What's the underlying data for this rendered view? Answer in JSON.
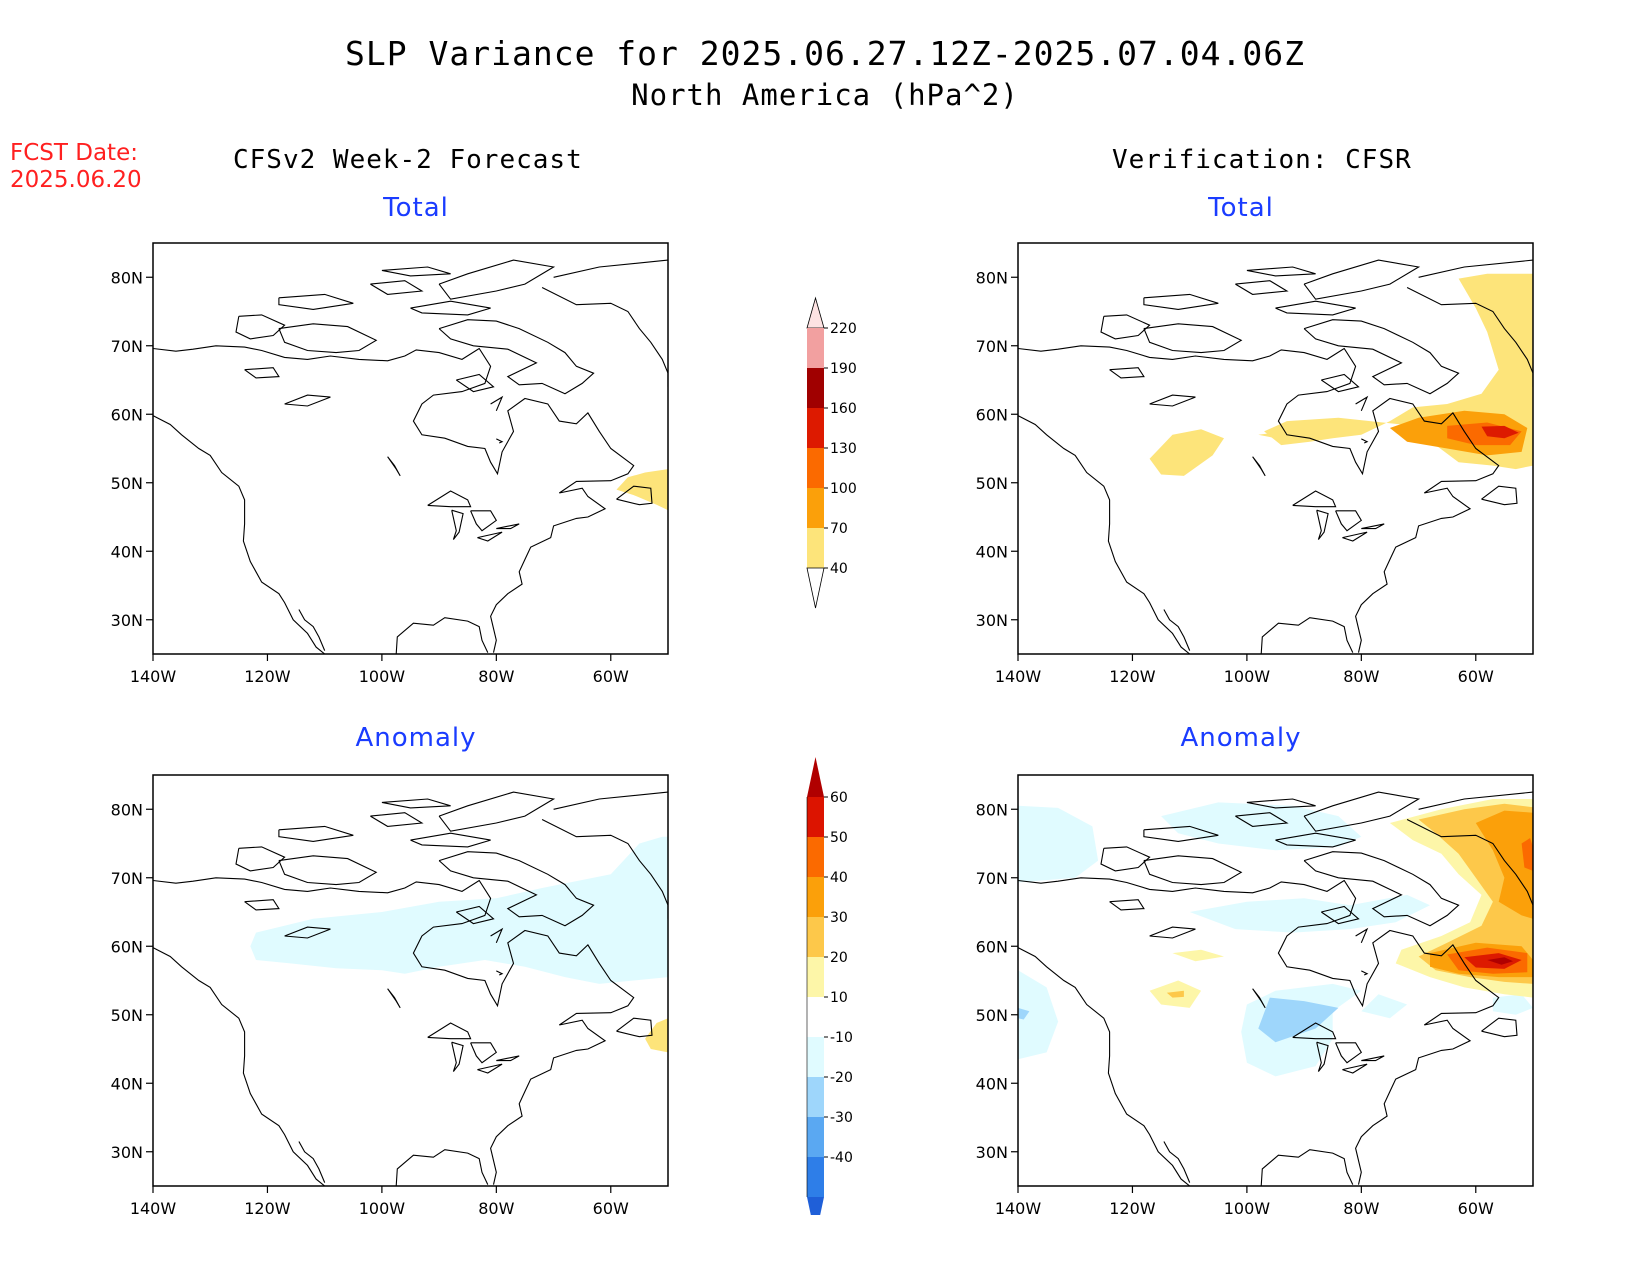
{
  "header": {
    "title_line1": "SLP Variance for 2025.06.27.12Z-2025.07.04.06Z",
    "title_line2": "North America (hPa^2)",
    "fcst_label": "FCST Date:",
    "fcst_date": "2025.06.20",
    "left_column": "CFSv2 Week-2 Forecast",
    "right_column": "Verification: CFSR"
  },
  "panels": {
    "fc_total_title": "Total",
    "vf_total_title": "Total",
    "fc_anom_title": "Anomaly",
    "vf_anom_title": "Anomaly"
  },
  "map": {
    "lon_range": [
      -140,
      -50
    ],
    "lat_range": [
      25,
      85
    ],
    "lat_ticks": [
      "80N",
      "70N",
      "60N",
      "50N",
      "40N",
      "30N"
    ],
    "lon_ticks": [
      "140W",
      "120W",
      "100W",
      "80W",
      "60W"
    ]
  },
  "legends": {
    "total": {
      "labels": [
        "220",
        "190",
        "160",
        "130",
        "100",
        "70",
        "40"
      ],
      "colors": [
        "#fde3e3",
        "#f2a0a0",
        "#a00000",
        "#dd1a00",
        "#fb6a00",
        "#fba00a",
        "#fde47a"
      ]
    },
    "anomaly": {
      "labels": [
        "60",
        "50",
        "40",
        "30",
        "20",
        "10",
        "-10",
        "-20",
        "-30",
        "-40"
      ],
      "colors": [
        "#b00000",
        "#dc1400",
        "#fb6a00",
        "#fba00a",
        "#fdc84a",
        "#fdf6a8",
        "#ffffff",
        "#e0fbff",
        "#9ed6fb",
        "#5aa8f2",
        "#2e7ee8",
        "#1f5fd8"
      ]
    }
  },
  "colors": {
    "title_text": "#000000",
    "panel_title": "#1a3cff",
    "fcst_text": "#ff2020"
  }
}
